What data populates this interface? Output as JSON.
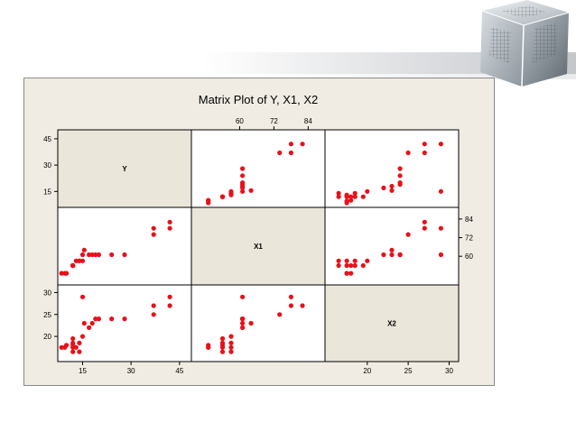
{
  "colors": {
    "figure_background": "#f0ece3",
    "panel_background": "#ffffff",
    "diagonal_background": "#ebe6da",
    "point_color": "#e8101a",
    "banner_gradient_end": "#c4c7ca"
  },
  "decoration": {
    "icon": "globe-cube-icon"
  },
  "chart_data": {
    "type": "scatter",
    "subtype": "scatterplot-matrix",
    "title": "Matrix Plot of Y, X1, X2",
    "variables": [
      "Y",
      "X1",
      "X2"
    ],
    "axes": {
      "Y": {
        "range": [
          9,
          47
        ],
        "ticks": [
          15,
          30,
          45
        ]
      },
      "X1": {
        "range": [
          45,
          88
        ],
        "ticks": [
          60,
          72,
          84
        ]
      },
      "X2": {
        "range": [
          15.5,
          30.5
        ],
        "ticks": [
          20,
          25,
          30
        ]
      }
    },
    "legend": "none",
    "grid": false,
    "observations": [
      {
        "Y": 8.5,
        "X1": 49,
        "X2": 17.5
      },
      {
        "Y": 9.5,
        "X1": 49,
        "X2": 17.5
      },
      {
        "Y": 10,
        "X1": 49,
        "X2": 18
      },
      {
        "Y": 12,
        "X1": 54,
        "X2": 16.5
      },
      {
        "Y": 12,
        "X1": 54,
        "X2": 18.5
      },
      {
        "Y": 12,
        "X1": 54,
        "X2": 19.5
      },
      {
        "Y": 12,
        "X1": 54,
        "X2": 17.5
      },
      {
        "Y": 12,
        "X1": 54,
        "X2": 18
      },
      {
        "Y": 13,
        "X1": 57,
        "X2": 17.5
      },
      {
        "Y": 14,
        "X1": 57,
        "X2": 18.5
      },
      {
        "Y": 14,
        "X1": 57,
        "X2": 16.5
      },
      {
        "Y": 15,
        "X1": 57,
        "X2": 20
      },
      {
        "Y": 15.5,
        "X1": 64,
        "X2": 23
      },
      {
        "Y": 15,
        "X1": 61,
        "X2": 29
      },
      {
        "Y": 17,
        "X1": 61,
        "X2": 22
      },
      {
        "Y": 18,
        "X1": 61,
        "X2": 23
      },
      {
        "Y": 19,
        "X1": 61,
        "X2": 24
      },
      {
        "Y": 20,
        "X1": 61,
        "X2": 24
      },
      {
        "Y": 24,
        "X1": 61,
        "X2": 24
      },
      {
        "Y": 28,
        "X1": 61,
        "X2": 24
      },
      {
        "Y": 37,
        "X1": 74,
        "X2": 25
      },
      {
        "Y": 37,
        "X1": 78,
        "X2": 27
      },
      {
        "Y": 42,
        "X1": 82,
        "X2": 27
      },
      {
        "Y": 42,
        "X1": 78,
        "X2": 29
      }
    ]
  }
}
